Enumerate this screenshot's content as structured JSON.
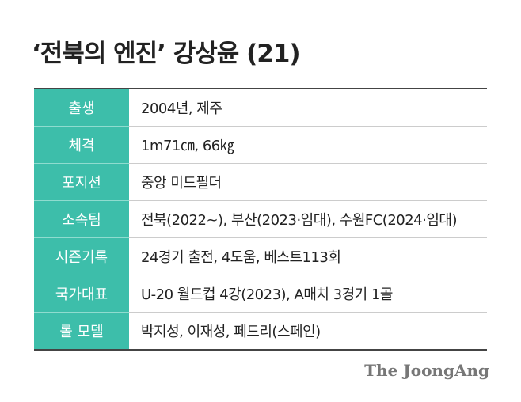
{
  "header": {
    "title": "‘전북의 엔진’ 강상윤 (21)"
  },
  "table": {
    "rows": [
      [
        "출생",
        "2004년, 제주"
      ],
      [
        "체격",
        "1m71㎝, 66㎏"
      ],
      [
        "포지션",
        "중앙 미드필더"
      ],
      [
        "소속팀",
        "전북(2022~), 부산(2023·임대), 수원FC(2024·임대)"
      ],
      [
        "시즌기록",
        "24경기 출전, 4도움, 베스트113회"
      ],
      [
        "국가대표",
        "U-20 월드컵 4강(2023), A매치 3경기 1골"
      ],
      [
        "롤 모델",
        "박지성, 이재성, 페드리(스페인)"
      ]
    ]
  },
  "footer": {
    "logo": "The JoongAng"
  }
}
